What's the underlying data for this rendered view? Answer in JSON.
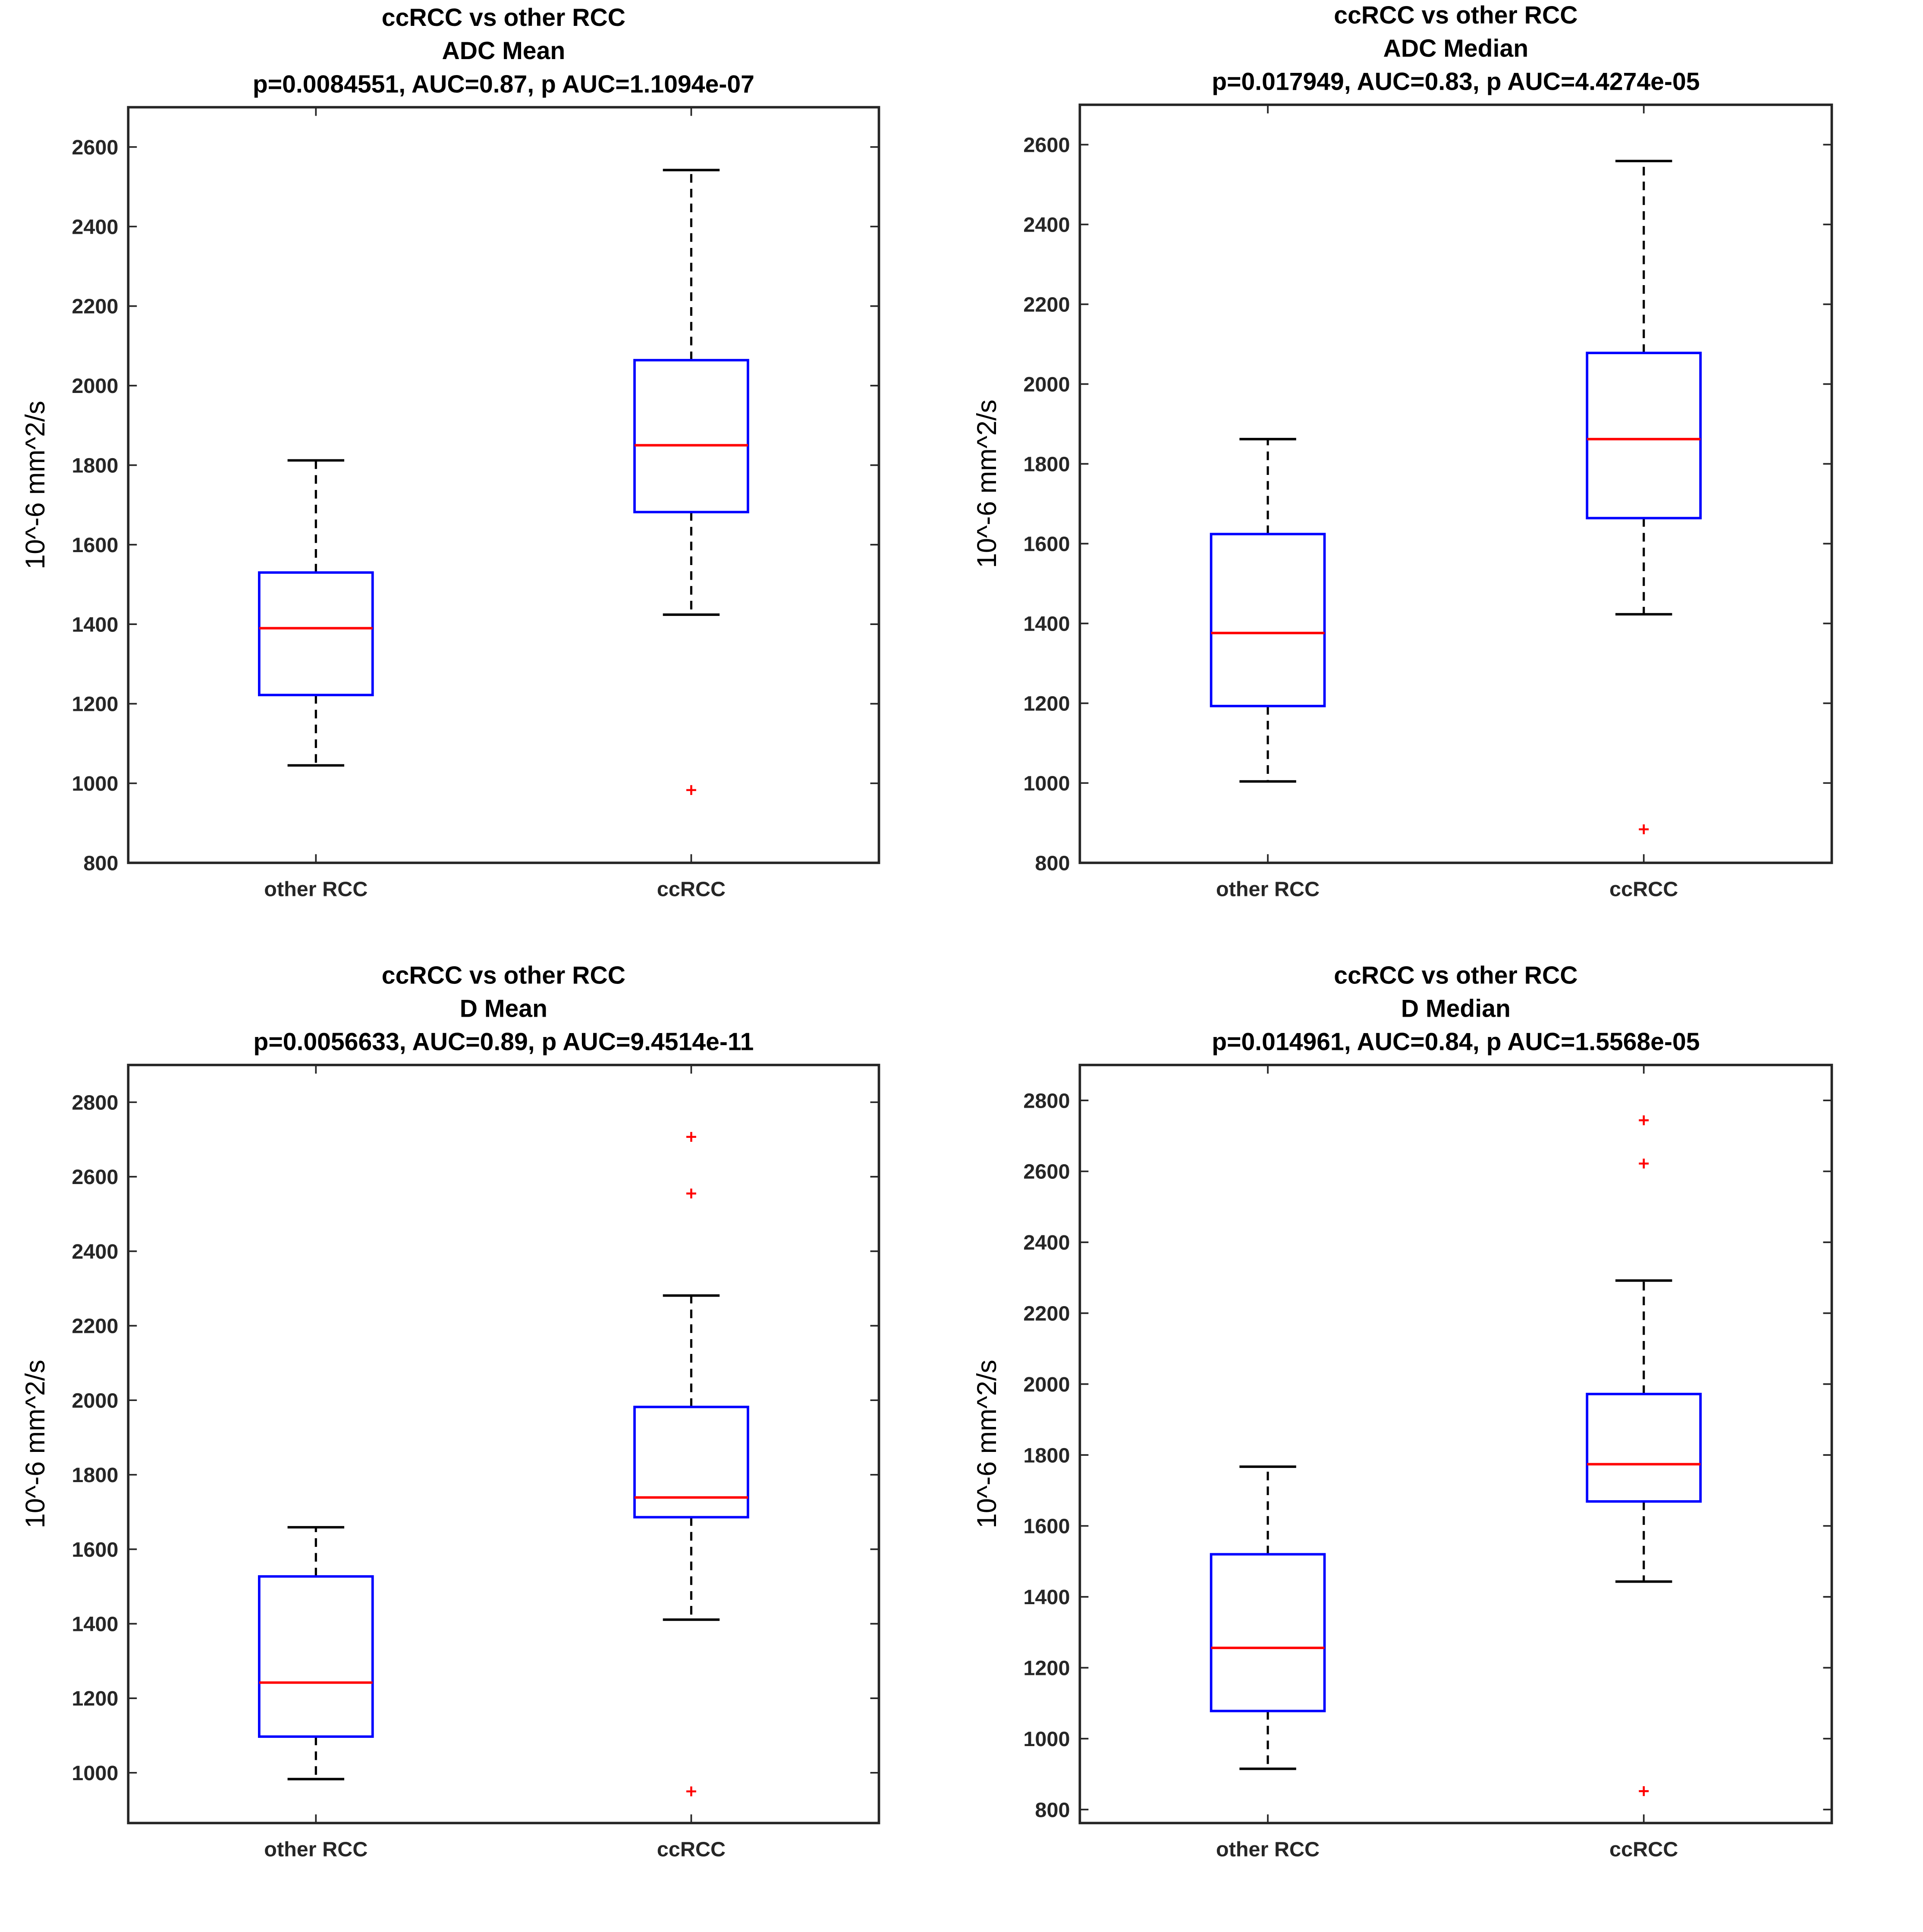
{
  "chart_data": [
    {
      "type": "box",
      "title": [
        "ccRCC vs other RCC",
        "ADC Mean",
        "p=0.0084551, AUC=0.87, p AUC=1.1094e-07"
      ],
      "ylabel": "10^-6 mm^2/s",
      "categories": [
        "other RCC",
        "ccRCC"
      ],
      "ylim": [
        800,
        2700
      ],
      "yticks": [
        800,
        1000,
        1200,
        1400,
        1600,
        1800,
        2000,
        2200,
        2400,
        2600
      ],
      "boxes": [
        {
          "whisker_low": 1045,
          "q1": 1222,
          "median": 1390,
          "q3": 1530,
          "whisker_high": 1812,
          "outliers": []
        },
        {
          "whisker_low": 1424,
          "q1": 1682,
          "median": 1850,
          "q3": 2064,
          "whisker_high": 2542,
          "outliers": [
            983
          ]
        }
      ]
    },
    {
      "type": "box",
      "title": [
        "ccRCC vs other RCC",
        "ADC Median",
        "p=0.017949, AUC=0.83, p AUC=4.4274e-05"
      ],
      "ylabel": "10^-6 mm^2/s",
      "categories": [
        "other RCC",
        "ccRCC"
      ],
      "ylim": [
        800,
        2700
      ],
      "yticks": [
        800,
        1000,
        1200,
        1400,
        1600,
        1800,
        2000,
        2200,
        2400,
        2600
      ],
      "boxes": [
        {
          "whisker_low": 1004,
          "q1": 1193,
          "median": 1376,
          "q3": 1624,
          "whisker_high": 1862,
          "outliers": []
        },
        {
          "whisker_low": 1423,
          "q1": 1664,
          "median": 1862,
          "q3": 2078,
          "whisker_high": 2559,
          "outliers": [
            884
          ]
        }
      ]
    },
    {
      "type": "box",
      "title": [
        "ccRCC vs other RCC",
        "D Mean",
        "p=0.0056633, AUC=0.89, p AUC=9.4514e-11"
      ],
      "ylabel": "10^-6 mm^2/s",
      "categories": [
        "other RCC",
        "ccRCC"
      ],
      "ylim": [
        865,
        2900
      ],
      "yticks": [
        1000,
        1200,
        1400,
        1600,
        1800,
        2000,
        2200,
        2400,
        2600,
        2800
      ],
      "boxes": [
        {
          "whisker_low": 983,
          "q1": 1097,
          "median": 1242,
          "q3": 1527,
          "whisker_high": 1659,
          "outliers": []
        },
        {
          "whisker_low": 1411,
          "q1": 1686,
          "median": 1739,
          "q3": 1982,
          "whisker_high": 2281,
          "outliers": [
            2707,
            2555,
            950
          ]
        }
      ]
    },
    {
      "type": "box",
      "title": [
        "ccRCC vs other RCC",
        "D Median",
        "p=0.014961, AUC=0.84, p AUC=1.5568e-05"
      ],
      "ylabel": "10^-6 mm^2/s",
      "categories": [
        "other RCC",
        "ccRCC"
      ],
      "ylim": [
        762,
        2900
      ],
      "yticks": [
        800,
        1000,
        1200,
        1400,
        1600,
        1800,
        2000,
        2200,
        2400,
        2600,
        2800
      ],
      "boxes": [
        {
          "whisker_low": 915,
          "q1": 1078,
          "median": 1256,
          "q3": 1520,
          "whisker_high": 1767,
          "outliers": []
        },
        {
          "whisker_low": 1443,
          "q1": 1669,
          "median": 1774,
          "q3": 1972,
          "whisker_high": 2292,
          "outliers": [
            2744,
            2622,
            852
          ]
        }
      ]
    }
  ],
  "colors": {
    "box": "#0000ff",
    "median": "#ff0000",
    "outlier": "#ff0000",
    "whisker": "#000000",
    "axes": "#262626"
  }
}
